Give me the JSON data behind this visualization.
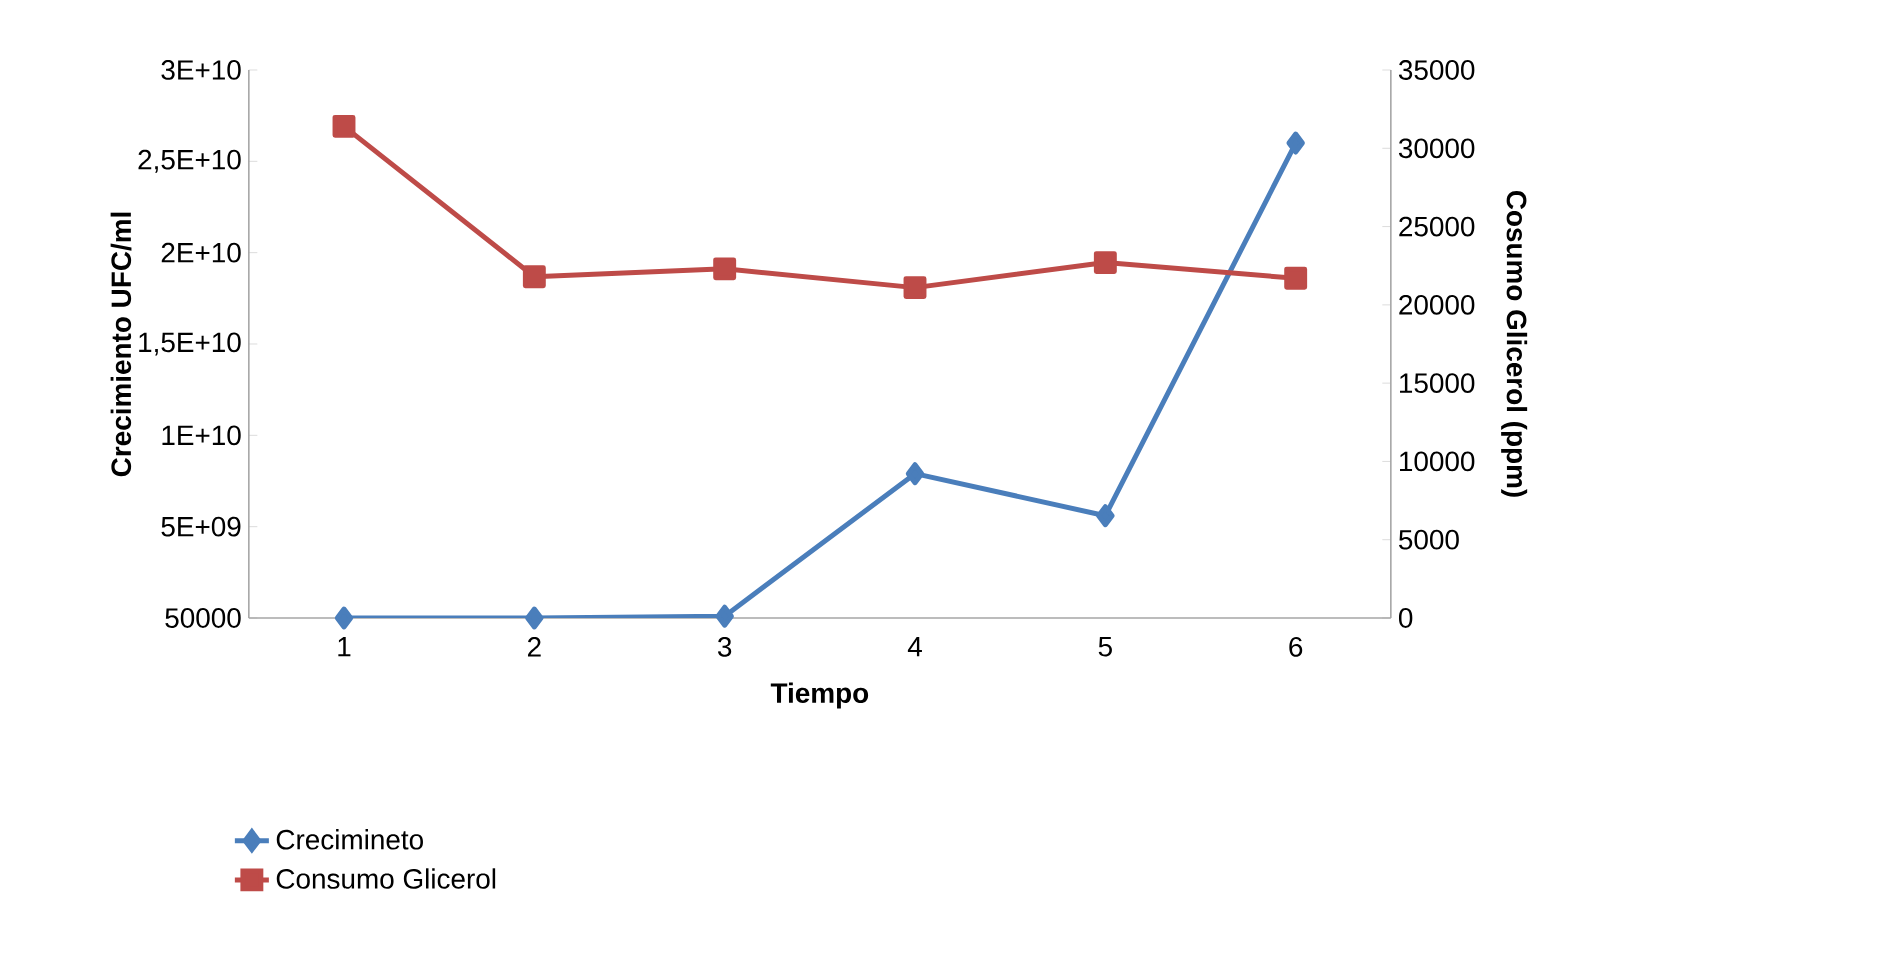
{
  "chart_data": {
    "type": "line",
    "xlabel": "Tiempo",
    "ylabel": "Crecimiento UFC/ml",
    "y2label": "Cosumo  Glicerol (ppm)",
    "categories": [
      "1",
      "2",
      "3",
      "4",
      "5",
      "6"
    ],
    "series": [
      {
        "name": "Crecimineto",
        "color": "#4a7ebb",
        "marker": "diamond",
        "values": [
          50000,
          50000,
          100000000,
          7900000000,
          5600000000,
          26000000000
        ]
      },
      {
        "name": "Consumo Glicerol",
        "color": "#be4b48",
        "marker": "square",
        "axis": "y2",
        "values": [
          31400,
          21800,
          22300,
          21100,
          22700,
          21700
        ]
      }
    ],
    "ylim": [
      50000,
      30000000000
    ],
    "yticks": [
      50000,
      {
        "value": 5000000000,
        "label": "5E+09"
      },
      {
        "value": 10000000000,
        "label": "1E+10"
      },
      {
        "value": 15000000000,
        "label": "1,5E+10"
      },
      {
        "value": 20000000000,
        "label": "2E+10"
      },
      {
        "value": 25000000000,
        "label": "2,5E+10"
      },
      {
        "value": 30000000000,
        "label": "3E+10"
      }
    ],
    "y2lim": [
      0,
      35000
    ],
    "y2ticks": [
      0,
      5000,
      10000,
      15000,
      20000,
      25000,
      30000,
      35000
    ],
    "legend": "bottom left"
  }
}
